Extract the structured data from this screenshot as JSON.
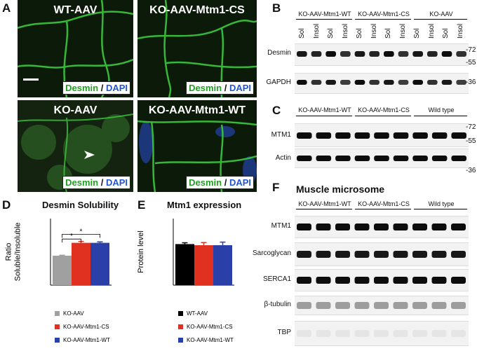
{
  "panel_letters": {
    "A": "A",
    "B": "B",
    "C": "C",
    "D": "D",
    "E": "E",
    "F": "F"
  },
  "micrographs": [
    {
      "id": "wt",
      "title": "WT-AAV"
    },
    {
      "id": "cs",
      "title": "KO-AAV-Mtm1-CS"
    },
    {
      "id": "ko",
      "title": "KO-AAV"
    },
    {
      "id": "wtrescue",
      "title": "KO-AAV-Mtm1-WT"
    }
  ],
  "stain": {
    "desmin": "Desmin",
    "sep": " / ",
    "dapi": "DAPI"
  },
  "panelB": {
    "groups": [
      "KO-AAV-Mtm1-WT",
      "KO-AAV-Mtm1-CS",
      "KO-AAV"
    ],
    "lanes": [
      "Sol",
      "Insol",
      "Sol",
      "Insol",
      "Sol",
      "Insol",
      "Sol",
      "Insol",
      "Sol",
      "Insol",
      "Sol",
      "Insol"
    ],
    "rows": [
      {
        "label": "Desmin",
        "mw": [
          "-72",
          "-55"
        ]
      },
      {
        "label": "GAPDH",
        "mw": [
          "-36"
        ]
      }
    ]
  },
  "panelC": {
    "groups": [
      "KO-AAV-Mtm1-WT",
      "KO-AAV-Mtm1-CS",
      "Wild type"
    ],
    "rows": [
      {
        "label": "MTM1",
        "mw": [
          "-72",
          "-55"
        ]
      },
      {
        "label": "Actin",
        "mw": [
          "-36"
        ]
      }
    ]
  },
  "panelF": {
    "title": "Muscle microsome",
    "groups": [
      "KO-AAV-Mtm1-WT",
      "KO-AAV-Mtm1-CS",
      "Wild type"
    ],
    "rows": [
      "MTM1",
      "Sarcoglycan",
      "SERCA1",
      "β-tubulin",
      "TBP"
    ]
  },
  "chart_data": [
    {
      "type": "bar",
      "title": "Desmin Solubility",
      "ylabel": "Ratio Soluble/Insoluble",
      "categories": [
        "KO-AAV",
        "KO-AAV-Mtm1-CS",
        "KO-AAV-Mtm1-WT"
      ],
      "values": [
        0.62,
        0.89,
        0.89
      ],
      "errors": [
        0.01,
        0.03,
        0.02
      ],
      "colors": [
        "#a0a0a0",
        "#e03020",
        "#2a40a8"
      ],
      "ylim": [
        0,
        1.4
      ],
      "significance": [
        {
          "pair": [
            0,
            1
          ],
          "label": "*"
        },
        {
          "pair": [
            0,
            2
          ],
          "label": "*"
        }
      ],
      "legend": [
        "KO-AAV",
        "KO-AAV-Mtm1-CS",
        "KO-AAV-Mtm1-WT"
      ]
    },
    {
      "type": "bar",
      "title": "Mtm1 expression",
      "ylabel": "Protein level",
      "categories": [
        "WT-AAV",
        "KO-AAV-Mtm1-CS",
        "KO-AAV-Mtm1-WT"
      ],
      "values": [
        185,
        180,
        180
      ],
      "errors": [
        6,
        12,
        14
      ],
      "colors": [
        "#000000",
        "#e03020",
        "#2a40a8"
      ],
      "ylim": [
        0,
        300
      ],
      "legend": [
        "WT-AAV",
        "KO-AAV-Mtm1-CS",
        "KO-AAV-Mtm1-WT"
      ]
    }
  ]
}
